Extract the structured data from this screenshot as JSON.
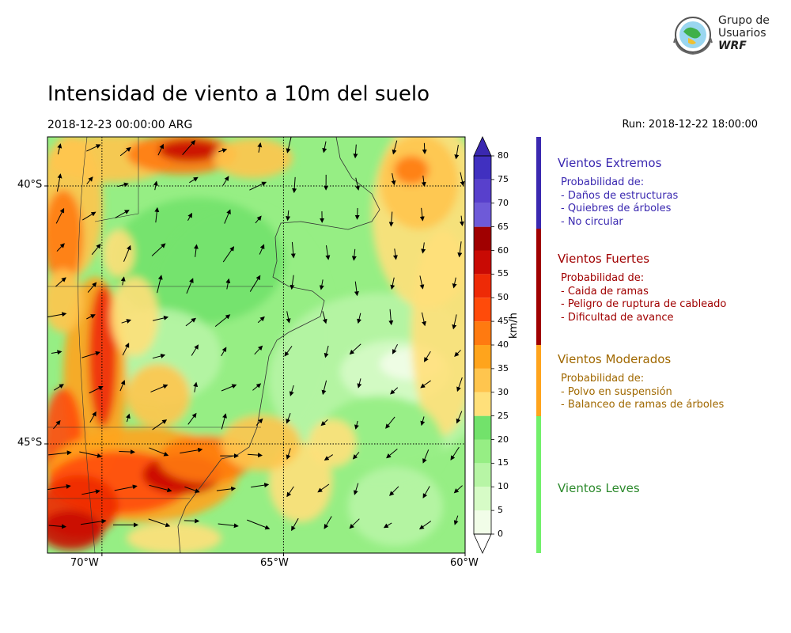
{
  "header": {
    "title": "Intensidad de viento a 10m del suelo",
    "valid_time": "2018-12-23 00:00:00 ARG",
    "run_time": "Run: 2018-12-22 18:00:00"
  },
  "logo": {
    "line1": "Grupo de",
    "line2": "Usuarios",
    "line3": "WRF",
    "icon": "globe-emblem-icon"
  },
  "map": {
    "lat_labels": [
      "40°S",
      "45°S"
    ],
    "lon_labels": [
      "70°W",
      "65°W",
      "60°W"
    ],
    "lon_range": [
      -71.5,
      -60
    ],
    "lat_range": [
      -46.0,
      -39.0
    ]
  },
  "colorbar": {
    "unit_label": "km/h",
    "levels": [
      0,
      5,
      10,
      15,
      20,
      25,
      30,
      35,
      40,
      45,
      50,
      55,
      60,
      65,
      70,
      75,
      80
    ],
    "tick_labels": [
      "0",
      "5",
      "10",
      "15",
      "20",
      "25",
      "30",
      "35",
      "40",
      "45",
      "50",
      "55",
      "60",
      "65",
      "70",
      "75",
      "80"
    ],
    "colors": [
      "#f1fde8",
      "#d6fbc6",
      "#b7f5a5",
      "#96ee84",
      "#72e26b",
      "#ffe07a",
      "#ffc54e",
      "#ffa41c",
      "#ff7a10",
      "#ff4b0a",
      "#ee2a06",
      "#c90a04",
      "#a00000",
      "#6e5ad8",
      "#5840cc",
      "#4030c0"
    ],
    "over_color": "#3a28b0",
    "under_color": "#ffffff"
  },
  "legend": {
    "categories": [
      {
        "title": "Vientos Extremos",
        "color": "#3a28b0",
        "lines": [
          "Probabilidad de:",
          "- Daños de estructuras",
          "- Quiebres de árboles",
          "- No circular"
        ]
      },
      {
        "title": "Vientos Fuertes",
        "color": "#a00000",
        "lines": [
          "Probabilidad de:",
          "- Caida de ramas",
          "- Peligro de ruptura de cableado",
          "- Dificultad de avance"
        ]
      },
      {
        "title": "Vientos Moderados",
        "color": "#a06800",
        "bar_color": "#ffa41c",
        "lines": [
          "Probabilidad de:",
          "- Polvo en suspensión",
          "- Balanceo de ramas de árboles"
        ]
      },
      {
        "title": "Vientos Leves",
        "color": "#2d8a2d",
        "bar_color": "#72f06b",
        "lines": []
      }
    ]
  }
}
